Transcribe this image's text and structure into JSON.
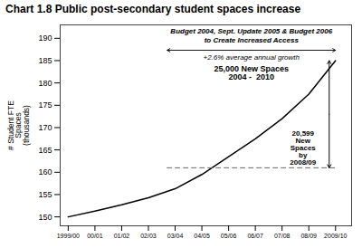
{
  "chart_data": {
    "type": "line",
    "title": "Chart 1.8 Public post-secondary student spaces increase",
    "ylabel": "# Student FTE\nSpaces\n(thousands)",
    "annotations": [
      "Budget 2004, Sept. Update 2005 & Budget 2006",
      "to Create Increased Access",
      "+2.6% average annual growth",
      "25,000 New Spaces\n2004 -  2010",
      "20,599\nNew\nSpaces\nby\n2008/09"
    ],
    "xlim": [
      -0.3,
      10.6
    ],
    "xticks": [
      {
        "value": 0,
        "label": "1999/00"
      },
      {
        "value": 1,
        "label": "00/01"
      },
      {
        "value": 2,
        "label": "01/02"
      },
      {
        "value": 3,
        "label": "02/03"
      },
      {
        "value": 4,
        "label": "03/04"
      },
      {
        "value": 5,
        "label": "04/05"
      },
      {
        "value": 6,
        "label": "05/06"
      },
      {
        "value": 7,
        "label": "06/07"
      },
      {
        "value": 8,
        "label": "07/08"
      },
      {
        "value": 9,
        "label": "08/09"
      },
      {
        "value": 10,
        "label": "2009/10"
      }
    ],
    "ylim": [
      148,
      193
    ],
    "yticks": [
      150,
      155,
      160,
      165,
      170,
      175,
      180,
      185,
      190
    ],
    "series": [
      {
        "x": [
          0,
          1,
          2,
          3,
          4,
          5,
          6,
          7,
          8,
          9,
          10
        ],
        "values": [
          150.0,
          151.3,
          152.7,
          154.3,
          156.3,
          159.5,
          163.5,
          167.5,
          172.0,
          177.5,
          185.0
        ],
        "color": "#000000",
        "line_style": "solid"
      },
      {
        "x": [
          3.7,
          10
        ],
        "values": [
          161.0,
          161.0
        ],
        "color": "#666666",
        "line_style": "dashed"
      }
    ],
    "grid": false
  }
}
